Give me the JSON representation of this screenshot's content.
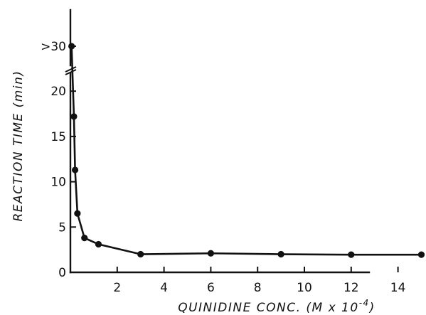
{
  "chart_data": {
    "type": "line",
    "xlabel": "QUINIDINE  CONC.  (M x 10",
    "xlabel_exponent": "-4",
    "xlabel_close": ")",
    "ylabel": "REACTION  TIME  (min)",
    "xlim": [
      0,
      15.4
    ],
    "ylim": [
      0,
      30
    ],
    "x_ticks": [
      2,
      4,
      6,
      8,
      10,
      12,
      14
    ],
    "y_ticks": [
      0,
      5,
      10,
      15,
      20
    ],
    "y_break_label": ">30",
    "y_break_value": 30,
    "axis_break": "between 22 and >30 on y-axis",
    "grid": false,
    "legend": "none",
    "series": [
      {
        "x": [
          0.05,
          0.15,
          0.2,
          0.3,
          0.6,
          1.2,
          3,
          6,
          9,
          12,
          15
        ],
        "y": [
          30,
          17.2,
          11.3,
          6.5,
          3.8,
          3.1,
          2.0,
          2.1,
          2.0,
          1.95,
          1.95
        ]
      }
    ]
  }
}
